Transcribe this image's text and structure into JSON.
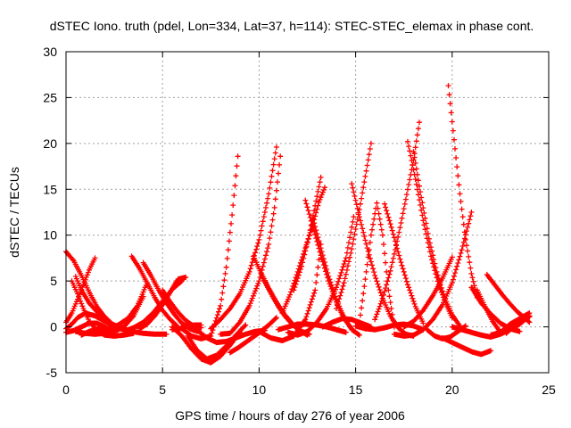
{
  "chart_data": {
    "type": "scatter",
    "title": "dSTEC Iono. truth (pdel, Lon=334, Lat=37, h=114): STEC-STEC_elemax in phase cont.",
    "xlabel": "GPS time / hours of day 276 of year 2006",
    "ylabel": "dSTEC  / TECUs",
    "xlim": [
      0,
      25
    ],
    "ylim": [
      -5,
      30
    ],
    "xticks": [
      0,
      5,
      10,
      15,
      20,
      25
    ],
    "yticks": [
      -5,
      0,
      5,
      10,
      15,
      20,
      25,
      30
    ],
    "grid": true,
    "marker": "plus",
    "color": "#ff0000",
    "series": [
      {
        "x": [
          0.0,
          0.4,
          0.8,
          1.2,
          1.6,
          2.0,
          2.4,
          2.8,
          3.2,
          3.5
        ],
        "y": [
          8.2,
          7.2,
          5.6,
          3.8,
          2.2,
          1.1,
          0.3,
          -0.2,
          -0.4,
          -0.5
        ]
      },
      {
        "x": [
          0.0,
          0.3,
          0.6,
          0.9,
          1.2,
          1.5
        ],
        "y": [
          0.5,
          1.5,
          3.0,
          4.6,
          6.2,
          7.5
        ]
      },
      {
        "x": [
          0.0,
          0.3,
          0.6,
          1.0,
          1.5,
          2.0,
          2.5,
          3.0
        ],
        "y": [
          -0.2,
          0.3,
          1.0,
          1.5,
          1.2,
          0.6,
          0.1,
          -0.3
        ]
      },
      {
        "x": [
          0.3,
          0.6,
          0.9,
          1.2,
          1.6,
          2.0,
          2.5,
          3.0,
          3.5
        ],
        "y": [
          5.0,
          3.6,
          2.0,
          0.6,
          -0.4,
          -0.9,
          -1.0,
          -0.9,
          -0.7
        ]
      },
      {
        "x": [
          0.5,
          0.8,
          1.2,
          1.7,
          2.2,
          2.8,
          3.4,
          4.0,
          4.6,
          5.2
        ],
        "y": [
          5.5,
          4.0,
          2.6,
          1.4,
          0.5,
          -0.1,
          -0.5,
          -0.7,
          -0.8,
          -0.8
        ]
      },
      {
        "x": [
          0.0,
          0.4,
          0.8,
          1.2,
          1.6,
          2.0,
          2.5
        ],
        "y": [
          -0.6,
          -0.4,
          0.0,
          0.4,
          0.4,
          0.0,
          -0.5
        ]
      },
      {
        "x": [
          0.5,
          1.0,
          1.5,
          2.0,
          2.5,
          3.0,
          3.5,
          4.0
        ],
        "y": [
          -0.5,
          -0.7,
          -0.8,
          -0.7,
          -0.5,
          0.0,
          1.2,
          3.3
        ]
      },
      {
        "x": [
          0.8,
          1.2,
          1.7,
          2.2,
          2.7,
          3.2,
          3.7,
          4.2
        ],
        "y": [
          -0.9,
          -0.5,
          -0.2,
          -0.3,
          0.2,
          0.9,
          2.3,
          4.8
        ]
      },
      {
        "x": [
          3.4,
          3.8,
          4.2,
          4.6,
          5.0,
          5.4,
          5.8
        ],
        "y": [
          7.7,
          6.4,
          4.8,
          3.2,
          1.8,
          0.8,
          0.0
        ]
      },
      {
        "x": [
          4.0,
          4.4,
          4.8,
          5.2,
          5.6,
          6.0,
          6.4,
          6.8
        ],
        "y": [
          7.0,
          5.6,
          4.0,
          2.6,
          1.4,
          0.4,
          -0.2,
          -0.5
        ]
      },
      {
        "x": [
          3.8,
          4.2,
          4.6,
          5.0,
          5.4,
          5.8,
          6.2
        ],
        "y": [
          -0.2,
          0.3,
          1.2,
          2.4,
          3.8,
          5.2,
          5.4
        ]
      },
      {
        "x": [
          3.0,
          3.5,
          4.0,
          4.5,
          5.0,
          5.5,
          6.0
        ],
        "y": [
          -0.5,
          -0.1,
          0.5,
          1.5,
          2.8,
          4.1,
          5.0
        ]
      },
      {
        "x": [
          5.0,
          5.4,
          5.8,
          6.2,
          6.6,
          7.0
        ],
        "y": [
          4.0,
          2.7,
          1.6,
          0.7,
          0.1,
          -0.1
        ]
      },
      {
        "x": [
          5.5,
          5.9,
          6.3,
          6.7,
          7.0
        ],
        "y": [
          -0.3,
          -0.2,
          0.1,
          0.2,
          0.2
        ]
      },
      {
        "x": [
          5.5,
          6.0,
          6.5,
          7.0,
          7.5,
          8.0,
          8.5,
          9.0
        ],
        "y": [
          0.0,
          -1.0,
          -2.4,
          -3.5,
          -3.9,
          -3.2,
          -2.0,
          -0.6
        ]
      },
      {
        "x": [
          6.3,
          6.8,
          7.3,
          7.8,
          8.3,
          8.8,
          9.3
        ],
        "y": [
          -1.0,
          -2.6,
          -3.5,
          -3.1,
          -2.1,
          -0.9,
          0.2
        ]
      },
      {
        "x": [
          6.0,
          6.5,
          7.0,
          7.5,
          8.0,
          8.3,
          8.6,
          8.9
        ],
        "y": [
          -0.2,
          -1.0,
          -1.3,
          -1.0,
          2.3,
          6.5,
          12.2,
          18.6
        ]
      },
      {
        "x": [
          6.8,
          7.3,
          7.8,
          8.3,
          8.8,
          9.3,
          9.8,
          10.3
        ],
        "y": [
          -0.4,
          -1.2,
          -1.7,
          -1.6,
          -1.2,
          -0.8,
          -0.5,
          -0.4
        ]
      },
      {
        "x": [
          7.5,
          8.0,
          8.5,
          9.0,
          9.5,
          10.0,
          10.5,
          10.9
        ],
        "y": [
          -0.2,
          0.8,
          2.0,
          3.6,
          6.0,
          9.5,
          14.5,
          19.6
        ]
      },
      {
        "x": [
          8.0,
          8.5,
          9.0,
          9.5,
          10.0,
          10.5,
          10.8,
          11.1
        ],
        "y": [
          -0.8,
          -0.7,
          0.5,
          2.3,
          5.0,
          9.0,
          13.0,
          18.6
        ]
      },
      {
        "x": [
          8.5,
          8.9,
          9.3,
          9.7,
          10.1,
          10.5,
          10.9
        ],
        "y": [
          -2.8,
          -2.3,
          -1.7,
          -1.1,
          -0.5,
          0.2,
          1.0
        ]
      },
      {
        "x": [
          9.7,
          10.1,
          10.5,
          10.9,
          11.3,
          11.7,
          12.1,
          12.5
        ],
        "y": [
          7.7,
          5.9,
          4.2,
          2.7,
          1.4,
          0.4,
          -0.4,
          -0.9
        ]
      },
      {
        "x": [
          10.2,
          10.6,
          11.0,
          11.4,
          11.8,
          12.2,
          12.6
        ],
        "y": [
          5.3,
          3.7,
          2.2,
          1.0,
          0.1,
          -0.5,
          -0.8
        ]
      },
      {
        "x": [
          10.0,
          10.6,
          11.2,
          11.8,
          12.4,
          12.9,
          13.2
        ],
        "y": [
          -0.5,
          -1.2,
          -1.5,
          -1.0,
          0.8,
          4.0,
          9.0
        ]
      },
      {
        "x": [
          11.0,
          11.5,
          12.0,
          12.5,
          13.0,
          13.5,
          14.0,
          14.5
        ],
        "y": [
          -0.3,
          0.0,
          0.3,
          0.3,
          0.2,
          0.0,
          -0.3,
          -0.6
        ]
      },
      {
        "x": [
          11.2,
          11.6,
          12.0,
          12.4,
          12.8,
          13.1,
          13.4
        ],
        "y": [
          1.5,
          3.5,
          6.0,
          8.6,
          11.3,
          13.6,
          15.2
        ]
      },
      {
        "x": [
          11.8,
          12.2,
          12.6,
          12.9,
          13.2
        ],
        "y": [
          4.0,
          6.6,
          10.0,
          13.2,
          16.3
        ]
      },
      {
        "x": [
          12.4,
          12.8,
          13.2,
          13.6,
          14.0,
          14.4,
          14.8
        ],
        "y": [
          13.8,
          10.8,
          7.8,
          5.0,
          2.7,
          0.9,
          -0.2
        ]
      },
      {
        "x": [
          12.8,
          13.2,
          13.6,
          14.0,
          14.4,
          14.8,
          15.2
        ],
        "y": [
          11.7,
          8.6,
          5.5,
          3.0,
          1.0,
          -0.3,
          -0.9
        ]
      },
      {
        "x": [
          11.5,
          12.0,
          12.5,
          13.0,
          13.5,
          14.0,
          14.5,
          14.9
        ],
        "y": [
          -0.6,
          -0.9,
          -0.5,
          0.5,
          2.0,
          4.3,
          7.5,
          12.0
        ]
      },
      {
        "x": [
          13.3,
          13.8,
          14.3,
          14.8,
          15.3,
          15.8
        ],
        "y": [
          0.0,
          0.5,
          0.9,
          0.8,
          0.4,
          0.0
        ]
      },
      {
        "x": [
          14.0,
          14.4,
          14.8,
          15.2,
          15.5,
          15.8
        ],
        "y": [
          2.0,
          4.8,
          8.5,
          12.8,
          16.4,
          20.0
        ]
      },
      {
        "x": [
          14.8,
          15.2,
          15.6,
          16.0,
          16.4,
          16.8,
          17.2,
          17.6,
          18.0
        ],
        "y": [
          15.6,
          12.0,
          8.6,
          5.6,
          3.1,
          1.2,
          -0.1,
          -0.8,
          -1.0
        ]
      },
      {
        "x": [
          15.2,
          15.5,
          15.8,
          16.1,
          16.4,
          16.7,
          17.0
        ],
        "y": [
          0.5,
          5.2,
          10.0,
          13.5,
          10.0,
          4.0,
          0.0
        ]
      },
      {
        "x": [
          15.0,
          15.5,
          16.0,
          16.5,
          17.0,
          17.5,
          18.0,
          18.5
        ],
        "y": [
          0.1,
          -0.2,
          -0.3,
          -0.1,
          0.2,
          0.3,
          0.1,
          -0.3
        ]
      },
      {
        "x": [
          16.5,
          16.9,
          17.3,
          17.7,
          18.1,
          18.5
        ],
        "y": [
          13.4,
          10.5,
          7.4,
          4.6,
          2.2,
          0.4
        ]
      },
      {
        "x": [
          16.0,
          16.4,
          16.8,
          17.2,
          17.6,
          18.0,
          18.3
        ],
        "y": [
          0.8,
          3.1,
          6.1,
          9.8,
          13.9,
          18.2,
          22.3
        ]
      },
      {
        "x": [
          17.7,
          18.1,
          18.5,
          18.9,
          19.3,
          19.7,
          20.0
        ],
        "y": [
          20.2,
          16.1,
          11.6,
          7.7,
          4.6,
          2.4,
          1.0
        ]
      },
      {
        "x": [
          18.0,
          18.4,
          18.8,
          19.2,
          19.6,
          20.0,
          20.4
        ],
        "y": [
          19.1,
          14.1,
          9.6,
          6.0,
          3.2,
          1.3,
          0.1
        ]
      },
      {
        "x": [
          17.0,
          17.5,
          18.0,
          18.5,
          19.0,
          19.5,
          20.0,
          20.5,
          21.0
        ],
        "y": [
          -0.8,
          -1.0,
          -0.9,
          -0.3,
          0.8,
          2.4,
          4.8,
          8.4,
          12.5
        ]
      },
      {
        "x": [
          17.5,
          18.0,
          18.5,
          19.0,
          19.5,
          20.0
        ],
        "y": [
          0.0,
          0.6,
          1.8,
          3.4,
          5.3,
          7.6
        ]
      },
      {
        "x": [
          19.8,
          20.1,
          20.4,
          20.7,
          21.0,
          21.3
        ],
        "y": [
          26.3,
          20.4,
          14.5,
          9.5,
          5.8,
          3.2
        ]
      },
      {
        "x": [
          18.7,
          19.1,
          19.5,
          19.9,
          20.3,
          20.7
        ],
        "y": [
          -0.3,
          -1.0,
          -1.3,
          -1.1,
          -0.5,
          0.1
        ]
      },
      {
        "x": [
          19.5,
          20.0,
          20.5,
          21.0,
          21.5,
          22.0
        ],
        "y": [
          -1.2,
          -1.7,
          -2.2,
          -2.7,
          -3.0,
          -2.6
        ]
      },
      {
        "x": [
          20.0,
          20.5,
          21.0,
          21.5,
          22.0,
          22.5,
          23.0,
          23.5,
          24.0
        ],
        "y": [
          0.0,
          -0.3,
          -0.6,
          -0.9,
          -1.1,
          -0.8,
          -0.3,
          0.3,
          1.2
        ]
      },
      {
        "x": [
          21.0,
          21.5,
          22.0,
          22.5,
          23.0,
          23.5
        ],
        "y": [
          4.3,
          2.6,
          1.4,
          0.4,
          -0.2,
          -0.5
        ]
      },
      {
        "x": [
          21.8,
          22.2,
          22.6,
          23.0,
          23.4,
          23.8,
          24.0
        ],
        "y": [
          5.7,
          4.6,
          3.5,
          2.5,
          1.6,
          0.9,
          0.5
        ]
      },
      {
        "x": [
          22.0,
          22.5,
          23.0,
          23.5,
          24.0
        ],
        "y": [
          -0.9,
          -0.6,
          0.3,
          0.9,
          1.5
        ]
      },
      {
        "x": [
          22.8,
          23.1,
          23.4,
          23.7,
          24.0
        ],
        "y": [
          -0.7,
          -0.1,
          0.4,
          0.8,
          1.1
        ]
      },
      {
        "x": [
          21.3,
          21.7,
          22.1,
          22.5
        ],
        "y": [
          4.0,
          2.2,
          0.6,
          -0.6
        ]
      }
    ]
  }
}
